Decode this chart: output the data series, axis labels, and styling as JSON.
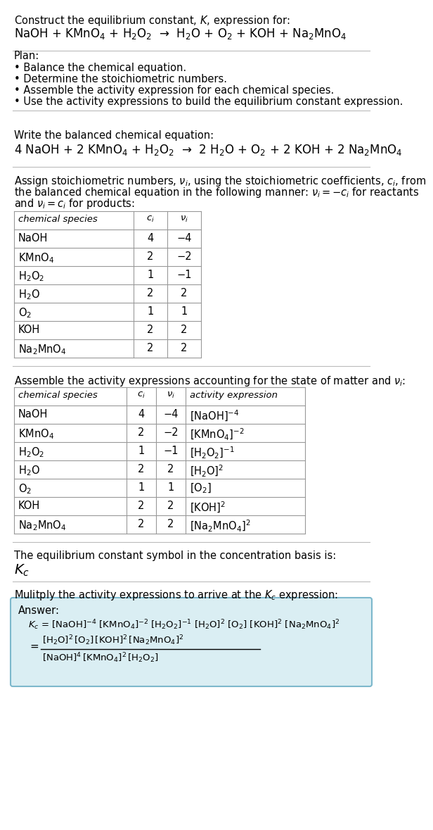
{
  "title_line1": "Construct the equilibrium constant, $K$, expression for:",
  "title_line2": "NaOH + KMnO$_4$ + H$_2$O$_2$  →  H$_2$O + O$_2$ + KOH + Na$_2$MnO$_4$",
  "plan_header": "Plan:",
  "plan_items": [
    "• Balance the chemical equation.",
    "• Determine the stoichiometric numbers.",
    "• Assemble the activity expression for each chemical species.",
    "• Use the activity expressions to build the equilibrium constant expression."
  ],
  "balanced_header": "Write the balanced chemical equation:",
  "balanced_eq": "4 NaOH + 2 KMnO$_4$ + H$_2$O$_2$  →  2 H$_2$O + O$_2$ + 2 KOH + 2 Na$_2$MnO$_4$",
  "stoich_header1": "Assign stoichiometric numbers, $\\nu_i$, using the stoichiometric coefficients, $c_i$, from",
  "stoich_header2": "the balanced chemical equation in the following manner: $\\nu_i = -c_i$ for reactants",
  "stoich_header3": "and $\\nu_i = c_i$ for products:",
  "table1_headers": [
    "chemical species",
    "$c_i$",
    "$\\nu_i$"
  ],
  "table1_rows": [
    [
      "NaOH",
      "4",
      "−4"
    ],
    [
      "KMnO$_4$",
      "2",
      "−2"
    ],
    [
      "H$_2$O$_2$",
      "1",
      "−1"
    ],
    [
      "H$_2$O",
      "2",
      "2"
    ],
    [
      "O$_2$",
      "1",
      "1"
    ],
    [
      "KOH",
      "2",
      "2"
    ],
    [
      "Na$_2$MnO$_4$",
      "2",
      "2"
    ]
  ],
  "activity_header": "Assemble the activity expressions accounting for the state of matter and $\\nu_i$:",
  "table2_headers": [
    "chemical species",
    "$c_i$",
    "$\\nu_i$",
    "activity expression"
  ],
  "table2_rows": [
    [
      "NaOH",
      "4",
      "−4",
      "[NaOH]$^{-4}$"
    ],
    [
      "KMnO$_4$",
      "2",
      "−2",
      "[KMnO$_4$]$^{-2}$"
    ],
    [
      "H$_2$O$_2$",
      "1",
      "−1",
      "[H$_2$O$_2$]$^{-1}$"
    ],
    [
      "H$_2$O",
      "2",
      "2",
      "[H$_2$O]$^2$"
    ],
    [
      "O$_2$",
      "1",
      "1",
      "[O$_2$]"
    ],
    [
      "KOH",
      "2",
      "2",
      "[KOH]$^2$"
    ],
    [
      "Na$_2$MnO$_4$",
      "2",
      "2",
      "[Na$_2$MnO$_4$]$^2$"
    ]
  ],
  "kc_header": "The equilibrium constant symbol in the concentration basis is:",
  "kc_symbol": "$K_c$",
  "multiply_header": "Mulitply the activity expressions to arrive at the $K_c$ expression:",
  "answer_label": "Answer:",
  "answer_kc_line": "$K_c$ = [NaOH]$^{-4}$ [KMnO$_4$]$^{-2}$ [H$_2$O$_2$]$^{-1}$ [H$_2$O]$^2$ [O$_2$] [KOH]$^2$ [Na$_2$MnO$_4$]$^2$",
  "frac_num": "$[\\mathrm{H_2O}]^2\\,[\\mathrm{O_2}]\\,[\\mathrm{KOH}]^2\\,[\\mathrm{Na_2MnO_4}]^2$",
  "frac_den": "$[\\mathrm{NaOH}]^4\\,[\\mathrm{KMnO_4}]^2\\,[\\mathrm{H_2O_2}]$",
  "bg_color": "#ffffff",
  "text_color": "#000000",
  "table_border_color": "#999999",
  "answer_box_fill": "#daeef3",
  "answer_box_edge": "#7db8cc",
  "fs": 10.5,
  "fs_eq": 12,
  "fs_small": 9.5,
  "fs_kc_big": 14
}
